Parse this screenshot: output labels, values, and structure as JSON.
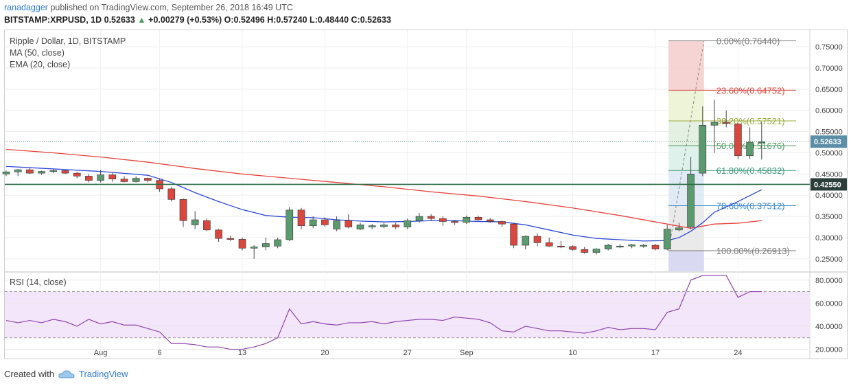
{
  "header": {
    "user": "ranadagger",
    "published": "published on TradingView.com, September 26, 2018 16:49 UTC",
    "symbol": "BITSTAMP:XRPUSD, 1D",
    "price": "0.52633",
    "change": "+0.00279 (+0.53%)",
    "ohlc": "O:0.52496 H:0.57240 L:0.48440 C:0.52633",
    "up_arrow": "▲"
  },
  "legend": {
    "title": "Ripple / Dollar, 1D, BITSTAMP",
    "ma": "MA (50, close)",
    "ema": "EMA (20, close)",
    "rsi": "RSI (14, close)"
  },
  "footer": {
    "created_with": "Created with",
    "brand": "TradingView"
  },
  "colors": {
    "up": "#5b9a6e",
    "down": "#d9473f",
    "ma50": "#e8413a",
    "ema20": "#2a46d8",
    "rsi": "#8e44ad",
    "hline": "#2e6b45"
  },
  "chart_data": [
    {
      "type": "candlestick",
      "title": "Ripple / Dollar, 1D, BITSTAMP",
      "yticks": [
        "0.75000",
        "0.70000",
        "0.65000",
        "0.60000",
        "0.55000",
        "0.50000",
        "0.45000",
        "0.40000",
        "0.35000",
        "0.30000",
        "0.25000"
      ],
      "ytick_values": [
        0.75,
        0.7,
        0.65,
        0.6,
        0.55,
        0.5,
        0.45,
        0.4,
        0.35,
        0.3,
        0.25
      ],
      "ylim": [
        0.2205,
        0.7875
      ],
      "xticks": [
        {
          "label": "Aug",
          "index": 8
        },
        {
          "label": "6",
          "index": 13
        },
        {
          "label": "13",
          "index": 20
        },
        {
          "label": "20",
          "index": 27
        },
        {
          "label": "27",
          "index": 34
        },
        {
          "label": "Sep",
          "index": 39
        },
        {
          "label": "10",
          "index": 48
        },
        {
          "label": "17",
          "index": 55
        },
        {
          "label": "24",
          "index": 62
        }
      ],
      "ohlc": [
        [
          0.45,
          0.458,
          0.445,
          0.455
        ],
        [
          0.455,
          0.462,
          0.445,
          0.46
        ],
        [
          0.46,
          0.465,
          0.45,
          0.452
        ],
        [
          0.452,
          0.458,
          0.448,
          0.456
        ],
        [
          0.456,
          0.462,
          0.452,
          0.458
        ],
        [
          0.458,
          0.46,
          0.45,
          0.452
        ],
        [
          0.452,
          0.455,
          0.44,
          0.445
        ],
        [
          0.445,
          0.45,
          0.43,
          0.435
        ],
        [
          0.435,
          0.46,
          0.43,
          0.448
        ],
        [
          0.448,
          0.452,
          0.432,
          0.438
        ],
        [
          0.438,
          0.445,
          0.43,
          0.432
        ],
        [
          0.432,
          0.445,
          0.43,
          0.44
        ],
        [
          0.44,
          0.442,
          0.43,
          0.435
        ],
        [
          0.435,
          0.44,
          0.408,
          0.415
        ],
        [
          0.415,
          0.42,
          0.385,
          0.39
        ],
        [
          0.39,
          0.392,
          0.325,
          0.34
        ],
        [
          0.33,
          0.362,
          0.32,
          0.342
        ],
        [
          0.34,
          0.345,
          0.315,
          0.318
        ],
        [
          0.318,
          0.32,
          0.29,
          0.298
        ],
        [
          0.298,
          0.305,
          0.292,
          0.296
        ],
        [
          0.296,
          0.3,
          0.27,
          0.275
        ],
        [
          0.275,
          0.282,
          0.25,
          0.278
        ],
        [
          0.278,
          0.3,
          0.27,
          0.286
        ],
        [
          0.28,
          0.3,
          0.275,
          0.295
        ],
        [
          0.295,
          0.372,
          0.292,
          0.365
        ],
        [
          0.365,
          0.37,
          0.32,
          0.328
        ],
        [
          0.328,
          0.35,
          0.322,
          0.342
        ],
        [
          0.342,
          0.348,
          0.325,
          0.33
        ],
        [
          0.32,
          0.35,
          0.315,
          0.34
        ],
        [
          0.34,
          0.355,
          0.322,
          0.325
        ],
        [
          0.32,
          0.335,
          0.318,
          0.33
        ],
        [
          0.325,
          0.332,
          0.32,
          0.328
        ],
        [
          0.326,
          0.335,
          0.322,
          0.33
        ],
        [
          0.33,
          0.335,
          0.32,
          0.325
        ],
        [
          0.325,
          0.345,
          0.32,
          0.34
        ],
        [
          0.34,
          0.358,
          0.335,
          0.35
        ],
        [
          0.35,
          0.355,
          0.34,
          0.345
        ],
        [
          0.345,
          0.35,
          0.328,
          0.338
        ],
        [
          0.338,
          0.342,
          0.33,
          0.336
        ],
        [
          0.336,
          0.352,
          0.332,
          0.348
        ],
        [
          0.348,
          0.352,
          0.34,
          0.342
        ],
        [
          0.342,
          0.346,
          0.335,
          0.338
        ],
        [
          0.338,
          0.34,
          0.325,
          0.332
        ],
        [
          0.332,
          0.335,
          0.275,
          0.282
        ],
        [
          0.282,
          0.305,
          0.272,
          0.303
        ],
        [
          0.303,
          0.31,
          0.28,
          0.288
        ],
        [
          0.288,
          0.3,
          0.278,
          0.28
        ],
        [
          0.28,
          0.292,
          0.275,
          0.279
        ],
        [
          0.279,
          0.282,
          0.268,
          0.272
        ],
        [
          0.272,
          0.278,
          0.262,
          0.265
        ],
        [
          0.265,
          0.275,
          0.26,
          0.273
        ],
        [
          0.273,
          0.285,
          0.27,
          0.282
        ],
        [
          0.278,
          0.285,
          0.275,
          0.28
        ],
        [
          0.28,
          0.285,
          0.275,
          0.283
        ],
        [
          0.28,
          0.285,
          0.276,
          0.282
        ],
        [
          0.282,
          0.285,
          0.27,
          0.273
        ],
        [
          0.273,
          0.33,
          0.27,
          0.32
        ],
        [
          0.318,
          0.335,
          0.315,
          0.323
        ],
        [
          0.325,
          0.49,
          0.32,
          0.45
        ],
        [
          0.452,
          0.61,
          0.445,
          0.565
        ],
        [
          0.565,
          0.625,
          0.5,
          0.572
        ],
        [
          0.572,
          0.6,
          0.56,
          0.57
        ],
        [
          0.568,
          0.57,
          0.485,
          0.493
        ],
        [
          0.493,
          0.56,
          0.485,
          0.525
        ],
        [
          0.525,
          0.572,
          0.484,
          0.526
        ]
      ],
      "ma50": [
        [
          0,
          0.508
        ],
        [
          4,
          0.5
        ],
        [
          8,
          0.49
        ],
        [
          12,
          0.478
        ],
        [
          16,
          0.463
        ],
        [
          20,
          0.45
        ],
        [
          24,
          0.44
        ],
        [
          28,
          0.43
        ],
        [
          32,
          0.42
        ],
        [
          36,
          0.408
        ],
        [
          40,
          0.398
        ],
        [
          44,
          0.385
        ],
        [
          48,
          0.37
        ],
        [
          52,
          0.352
        ],
        [
          56,
          0.332
        ],
        [
          58,
          0.322
        ],
        [
          60,
          0.332
        ],
        [
          62,
          0.334
        ],
        [
          64,
          0.34
        ]
      ],
      "ema20": [
        [
          0,
          0.468
        ],
        [
          4,
          0.462
        ],
        [
          8,
          0.456
        ],
        [
          12,
          0.447
        ],
        [
          14,
          0.43
        ],
        [
          16,
          0.406
        ],
        [
          18,
          0.385
        ],
        [
          20,
          0.366
        ],
        [
          22,
          0.352
        ],
        [
          24,
          0.348
        ],
        [
          26,
          0.347
        ],
        [
          28,
          0.342
        ],
        [
          30,
          0.339
        ],
        [
          32,
          0.337
        ],
        [
          34,
          0.338
        ],
        [
          36,
          0.34
        ],
        [
          38,
          0.34
        ],
        [
          40,
          0.338
        ],
        [
          42,
          0.337
        ],
        [
          44,
          0.33
        ],
        [
          46,
          0.318
        ],
        [
          48,
          0.306
        ],
        [
          50,
          0.298
        ],
        [
          52,
          0.295
        ],
        [
          54,
          0.292
        ],
        [
          56,
          0.293
        ],
        [
          57,
          0.3
        ],
        [
          58,
          0.315
        ],
        [
          59,
          0.335
        ],
        [
          60,
          0.36
        ],
        [
          62,
          0.385
        ],
        [
          64,
          0.413
        ]
      ],
      "current_price": {
        "value": 0.52633,
        "label": "0.52633"
      },
      "support_line": {
        "value": 0.4255,
        "label": "0.42550"
      },
      "fibonacci": [
        {
          "label": "0.00%(0.76440)",
          "value": 0.7644,
          "color": "#777777"
        },
        {
          "label": "23.60%(0.64752)",
          "value": 0.64752,
          "color": "#d9473f"
        },
        {
          "label": "38.20%(0.57521)",
          "value": 0.57521,
          "color": "#9aaa3a"
        },
        {
          "label": "50.00%(0.51676)",
          "value": 0.51676,
          "color": "#4a9a5c"
        },
        {
          "label": "61.80%(0.45832)",
          "value": 0.45832,
          "color": "#3a9a7a"
        },
        {
          "label": "78.60%(0.37512)",
          "value": 0.37512,
          "color": "#3a8acb"
        },
        {
          "label": "100.00%(0.26913)",
          "value": 0.26913,
          "color": "#777777"
        }
      ],
      "fib_fills": [
        "#f6cccc",
        "#eaf2d0",
        "#dfeedd",
        "#d8eee6",
        "#dbe8f4",
        "#e6e6e6",
        "#d2d4f0"
      ],
      "fib_start_index": 56,
      "fib_end_index": 59
    },
    {
      "type": "line",
      "title": "RSI (14, close)",
      "yticks": [
        "80.0000",
        "60.0000",
        "40.0000",
        "20.0000"
      ],
      "ytick_values": [
        80,
        60,
        40,
        20
      ],
      "ylim": [
        12,
        87
      ],
      "band": [
        30,
        70
      ],
      "values": [
        45,
        43,
        45,
        43,
        46,
        44,
        40,
        46,
        42,
        44,
        41,
        41,
        38,
        35,
        25,
        25,
        24,
        22,
        22,
        20,
        20,
        22,
        25,
        30,
        55,
        42,
        44,
        42,
        41,
        43,
        43,
        44,
        42,
        44,
        45,
        46,
        46,
        45,
        48,
        47,
        46,
        43,
        36,
        35,
        40,
        38,
        36,
        36,
        35,
        34,
        36,
        39,
        37,
        38,
        38,
        37,
        52,
        55,
        80,
        84,
        84,
        84,
        65,
        70,
        70
      ]
    }
  ]
}
